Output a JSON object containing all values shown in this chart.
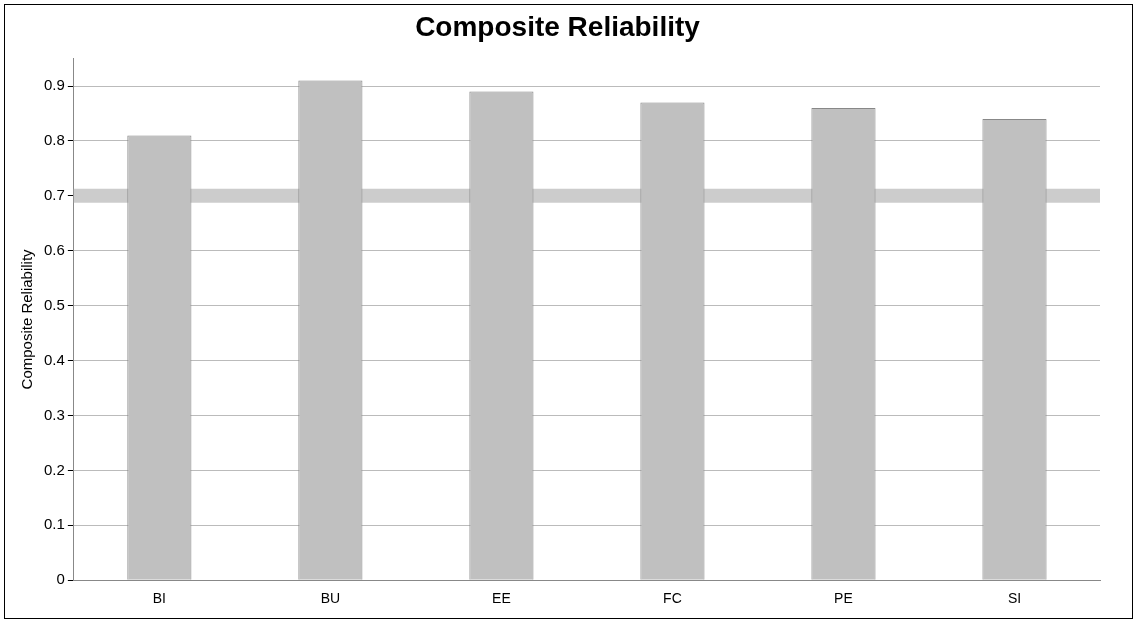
{
  "chart_data": {
    "type": "bar",
    "title": "Composite Reliability",
    "ylabel": "Composite Reliability",
    "categories": [
      "BI",
      "BU",
      "EE",
      "FC",
      "PE",
      "SI"
    ],
    "values": [
      0.81,
      0.91,
      0.89,
      0.87,
      0.86,
      0.84
    ],
    "color": "#c0c0c0",
    "ylim": [
      0,
      0.95
    ],
    "yticks": [
      0,
      0.1,
      0.2,
      0.3,
      0.4,
      0.5,
      0.6,
      0.7,
      0.8,
      0.9
    ],
    "grid": "y",
    "legend": false,
    "ref_lines": [
      {
        "axis": "y",
        "value": 0.7,
        "color": "#cccccc"
      }
    ]
  }
}
